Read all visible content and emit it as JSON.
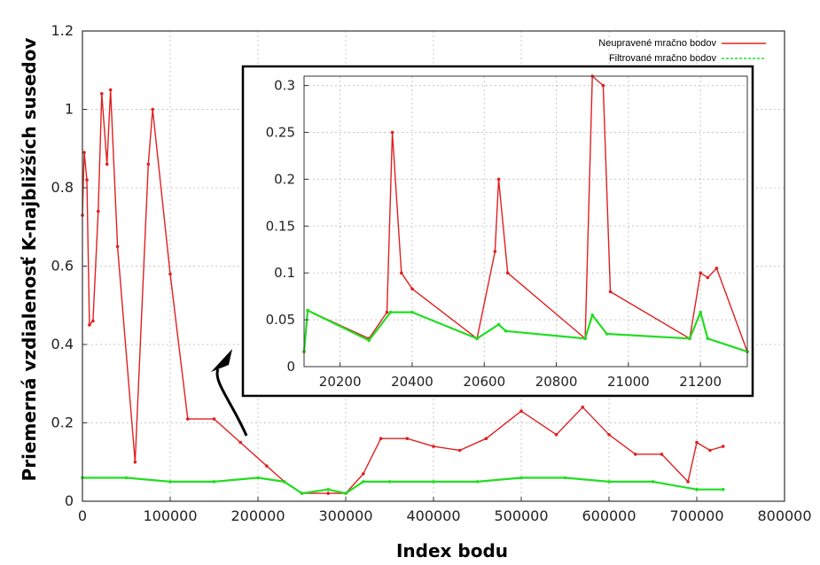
{
  "chart_data": [
    {
      "type": "line",
      "xlabel": "Index bodu",
      "ylabel": "Priemerná vzdialenosť K-najbližších susedov",
      "xlim": [
        0,
        800000
      ],
      "ylim": [
        0,
        1.2
      ],
      "xticks": [
        "0",
        "100000",
        "200000",
        "300000",
        "400000",
        "500000",
        "600000",
        "700000",
        "800000"
      ],
      "yticks": [
        "0",
        "0.2",
        "0.4",
        "0.6",
        "0.8",
        "1",
        "1.2"
      ],
      "grid": true,
      "legend_position": "top-right",
      "series": [
        {
          "name": "Neupravené mračno bodov",
          "color": "#e02020",
          "style": "solid",
          "x": [
            0,
            2000,
            5000,
            8000,
            12000,
            18000,
            22000,
            28000,
            32000,
            40000,
            60000,
            75000,
            80000,
            100000,
            120000,
            150000,
            180000,
            210000,
            230000,
            250000,
            280000,
            300000,
            320000,
            340000,
            370000,
            400000,
            430000,
            460000,
            500000,
            540000,
            570000,
            600000,
            630000,
            660000,
            690000,
            700000,
            715000,
            730000
          ],
          "y": [
            0.73,
            0.89,
            0.82,
            0.45,
            0.46,
            0.74,
            1.04,
            0.86,
            1.05,
            0.65,
            0.1,
            0.86,
            1.0,
            0.58,
            0.21,
            0.21,
            0.15,
            0.09,
            0.05,
            0.02,
            0.02,
            0.02,
            0.07,
            0.16,
            0.16,
            0.14,
            0.13,
            0.16,
            0.23,
            0.17,
            0.24,
            0.17,
            0.12,
            0.12,
            0.05,
            0.15,
            0.13,
            0.14
          ]
        },
        {
          "name": "Filtrované mračno bodov",
          "color": "#22dd22",
          "style": "dashed",
          "x": [
            0,
            50000,
            100000,
            150000,
            200000,
            230000,
            250000,
            280000,
            300000,
            320000,
            350000,
            400000,
            450000,
            500000,
            550000,
            600000,
            650000,
            700000,
            730000
          ],
          "y": [
            0.06,
            0.06,
            0.05,
            0.05,
            0.06,
            0.05,
            0.02,
            0.03,
            0.02,
            0.05,
            0.05,
            0.05,
            0.05,
            0.06,
            0.06,
            0.05,
            0.05,
            0.03,
            0.03
          ]
        }
      ]
    },
    {
      "type": "line",
      "role": "inset",
      "xlim": [
        20100,
        21330
      ],
      "ylim": [
        0,
        0.31
      ],
      "xticks": [
        "20200",
        "20400",
        "20600",
        "20800",
        "21000",
        "21200"
      ],
      "yticks": [
        "0",
        "0.05",
        "0.1",
        "0.15",
        "0.2",
        "0.25",
        "0.3"
      ],
      "grid": true,
      "series": [
        {
          "name": "Neupravené mračno bodov",
          "color": "#e02020",
          "x": [
            20100,
            20110,
            20280,
            20330,
            20345,
            20370,
            20400,
            20580,
            20630,
            20640,
            20665,
            20880,
            20900,
            20930,
            20950,
            21170,
            21200,
            21220,
            21245,
            21330
          ],
          "y": [
            0.016,
            0.06,
            0.03,
            0.058,
            0.25,
            0.1,
            0.083,
            0.03,
            0.123,
            0.2,
            0.1,
            0.03,
            0.31,
            0.3,
            0.08,
            0.03,
            0.1,
            0.095,
            0.105,
            0.016
          ]
        },
        {
          "name": "Filtrované mračno bodov",
          "color": "#22dd22",
          "x": [
            20100,
            20110,
            20280,
            20340,
            20400,
            20580,
            20640,
            20660,
            20880,
            20900,
            20940,
            21170,
            21200,
            21220,
            21330
          ],
          "y": [
            0.016,
            0.06,
            0.028,
            0.058,
            0.058,
            0.03,
            0.045,
            0.038,
            0.03,
            0.055,
            0.035,
            0.03,
            0.058,
            0.03,
            0.016
          ]
        }
      ]
    }
  ]
}
